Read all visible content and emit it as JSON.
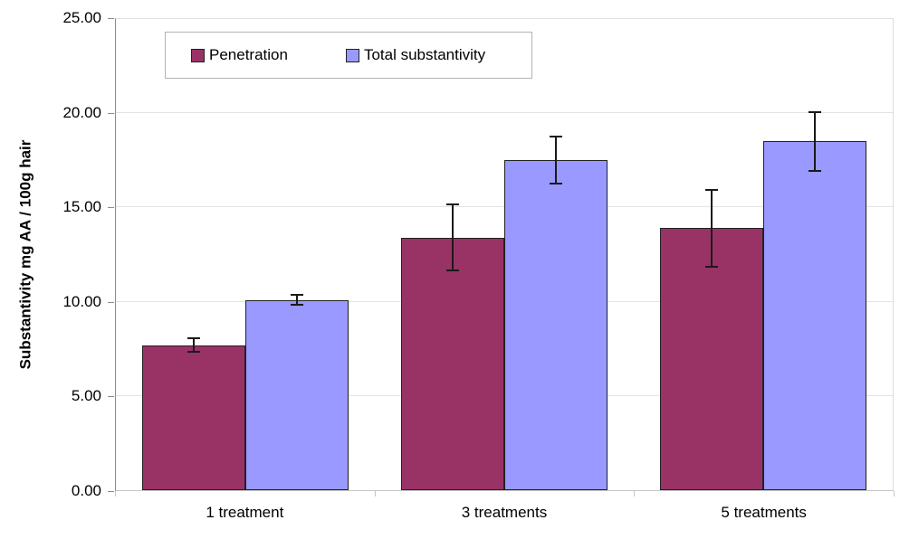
{
  "chart_data": {
    "type": "bar",
    "title": "",
    "categories": [
      "1 treatment",
      "3 treatments",
      "5 treatments"
    ],
    "series": [
      {
        "name": "Penetration",
        "color": "#993366",
        "values": [
          7.7,
          13.4,
          13.9
        ],
        "errors": [
          0.4,
          1.8,
          2.1
        ]
      },
      {
        "name": "Total substantivity",
        "color": "#9999FF",
        "values": [
          10.1,
          17.5,
          18.5
        ],
        "errors": [
          0.3,
          1.3,
          1.6
        ]
      }
    ],
    "xlabel": "",
    "ylabel": "Substantivity mg AA / 100g hair",
    "ylim": [
      0,
      25
    ],
    "ytick_step": 5,
    "ytick_labels": [
      "0.00",
      "5.00",
      "10.00",
      "15.00",
      "20.00",
      "25.00"
    ],
    "grid": true,
    "error_bars": true,
    "legend_position": "inside-top-left"
  },
  "colors": {
    "background": "#ffffff",
    "bar_border": "#222222",
    "error_bar": "#1a1a1a",
    "axis_y": "#8c8c8c",
    "axis_x": "#c6c6c6",
    "gridline": "#e3e3e3",
    "legend_border": "#b3b3b3",
    "text": "#000000"
  }
}
